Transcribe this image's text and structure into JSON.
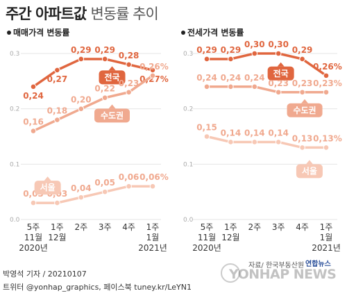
{
  "header": {
    "title_main": "주간 아파트값",
    "title_sub": "변동률 추이"
  },
  "colors": {
    "dark": "#e0663f",
    "mid": "#f0a98f",
    "light": "#f7c8b5",
    "grid": "#e6e6e6"
  },
  "chart_data": [
    {
      "type": "line",
      "title": "매매가격 변동률",
      "categories": [
        "5주 11월 2020년",
        "1주 12월",
        "2주",
        "3주",
        "4주",
        "1주 1월 2021년"
      ],
      "ylim": [
        0,
        0.3
      ],
      "yticks": [
        "0.0",
        "0.1",
        "0.2",
        "0.3"
      ],
      "series": [
        {
          "name": "전국",
          "values": [
            0.24,
            0.27,
            0.29,
            0.29,
            0.28,
            0.27
          ],
          "labels": [
            "0,24",
            "0,27",
            "0,29",
            "0,29",
            "0,28",
            "0,27%"
          ]
        },
        {
          "name": "수도권",
          "values": [
            0.16,
            0.18,
            0.2,
            0.22,
            0.23,
            0.26
          ],
          "labels": [
            "0,16",
            "0,18",
            "0,20",
            "0,22",
            "0,23",
            "0,26%"
          ]
        },
        {
          "name": "서울",
          "values": [
            0.03,
            0.03,
            0.04,
            0.05,
            0.06,
            0.06
          ],
          "labels": [
            "0,03",
            "0,03",
            "0,04",
            "0,05",
            "0,06",
            "0,06%"
          ]
        }
      ]
    },
    {
      "type": "line",
      "title": "전세가격 변동률",
      "categories": [
        "5주 11월 2020년",
        "1주 12월",
        "2주",
        "3주",
        "4주",
        "1주 1월 2021년"
      ],
      "ylim": [
        0,
        0.3
      ],
      "yticks": [
        "0.0",
        "0.1",
        "0.2",
        "0.3"
      ],
      "series": [
        {
          "name": "전국",
          "values": [
            0.29,
            0.29,
            0.3,
            0.3,
            0.29,
            0.26
          ],
          "labels": [
            "0,29",
            "0,29",
            "0,30",
            "0,30",
            "0,29",
            "0,26%"
          ]
        },
        {
          "name": "수도권",
          "values": [
            0.24,
            0.24,
            0.24,
            0.23,
            0.23,
            0.23
          ],
          "labels": [
            "0,24",
            "0,24",
            "0,24",
            "0,23",
            "0,23",
            "0,23%"
          ]
        },
        {
          "name": "서울",
          "values": [
            0.15,
            0.14,
            0.14,
            0.14,
            0.13,
            0.13
          ],
          "labels": [
            "0,15",
            "0,14",
            "0,14",
            "0,14",
            "0,13",
            "0,13%"
          ]
        }
      ]
    }
  ],
  "x_axis": {
    "line1": [
      "5주",
      "1주",
      "2주",
      "3주",
      "4주",
      "1주"
    ],
    "line2": [
      "11월",
      "12월",
      "",
      "",
      "",
      "1월"
    ],
    "line3": [
      "2020년",
      "",
      "",
      "",
      "",
      "2021년"
    ]
  },
  "footer": {
    "line1": "박영석 기자 / 20210107",
    "line2": "트위터 @yonhap_graphics, 페이스북 tuney.kr/LeYN1"
  },
  "source": "자료/ 한국부동산원",
  "logo": "연합뉴스",
  "watermark": "YONHAP NEWS"
}
